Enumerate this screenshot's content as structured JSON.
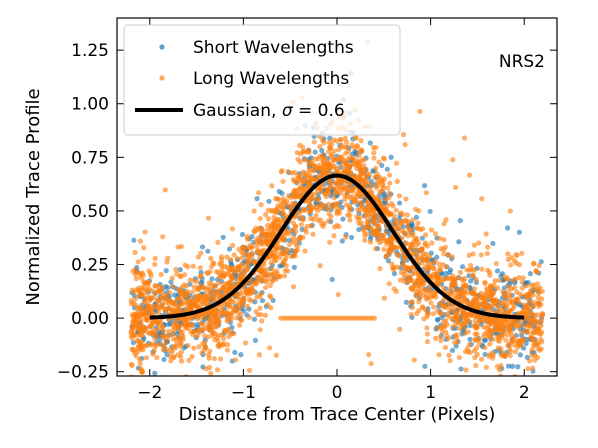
{
  "colors": {
    "short": "#1f77b4",
    "long": "#ff7f0e",
    "gaussian": "#000000",
    "legend_border": "#cccccc"
  },
  "chart_data": {
    "type": "scatter",
    "xlabel": "Distance from Trace Center (Pixels)",
    "ylabel": "Normalized Trace Profile",
    "xlim": [
      -2.35,
      2.35
    ],
    "ylim": [
      -0.27,
      1.4
    ],
    "x_ticks": [
      -2,
      -1,
      0,
      1,
      2
    ],
    "x_tick_labels": [
      "−2",
      "−1",
      "0",
      "1",
      "2"
    ],
    "y_ticks": [
      -0.25,
      0.0,
      0.25,
      0.5,
      0.75,
      1.0,
      1.25
    ],
    "y_tick_labels": [
      "−0.25",
      "0.00",
      "0.25",
      "0.50",
      "0.75",
      "1.00",
      "1.25"
    ],
    "grid": false,
    "legend_position": "top-left",
    "annotation": "NRS2",
    "series": [
      {
        "name": "Short Wavelengths",
        "kind": "scatter",
        "color": "#1f77b4",
        "profile": {
          "amplitude": 0.665,
          "sigma": 0.6,
          "x_range": [
            -2.2,
            2.2
          ],
          "scatter_sd": 0.11,
          "n_points": 900
        }
      },
      {
        "name": "Long Wavelengths",
        "kind": "scatter",
        "color": "#ff7f0e",
        "profile": {
          "amplitude": 0.665,
          "sigma": 0.6,
          "x_range": [
            -2.2,
            2.2
          ],
          "scatter_sd": 0.11,
          "n_points": 2600
        },
        "zero_points": {
          "x_range": [
            -0.6,
            0.4
          ],
          "y": 0.0,
          "n_points": 34
        }
      },
      {
        "name": "Gaussian, σ = 0.6",
        "name_parts": {
          "prefix": "Gaussian, ",
          "symbol": "σ",
          "suffix": " = 0.6"
        },
        "kind": "line",
        "color": "#000000",
        "amplitude": 0.665,
        "sigma": 0.6,
        "x_range": [
          -2.0,
          2.0
        ]
      }
    ]
  }
}
